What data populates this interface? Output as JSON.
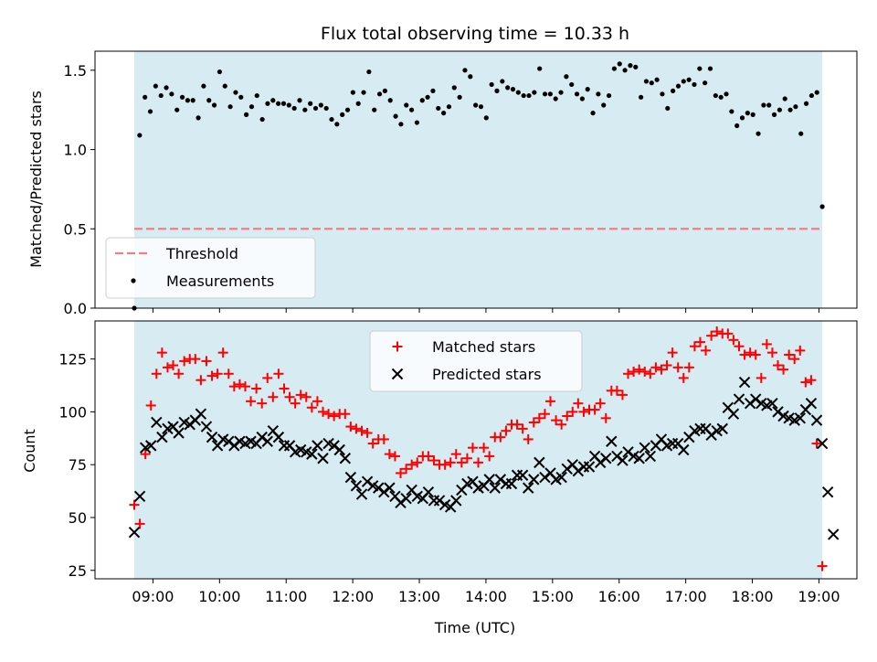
{
  "chart_data": {
    "title": "Flux total observing time = 10.33 h",
    "xlabel": "Time (UTC)",
    "x_ticks": [
      "09:00",
      "10:00",
      "11:00",
      "12:00",
      "13:00",
      "14:00",
      "15:00",
      "16:00",
      "17:00",
      "18:00",
      "19:00"
    ],
    "x_tick_hours": [
      9,
      10,
      11,
      12,
      13,
      14,
      15,
      16,
      17,
      18,
      19
    ],
    "xlim_hours": [
      8.13,
      19.57
    ],
    "shaded_span_hours": [
      8.72,
      19.05
    ],
    "shade_color": "#add8e6",
    "top": {
      "type": "scatter",
      "ylabel": "Matched/Predicted stars",
      "ylim": [
        0,
        1.62
      ],
      "y_ticks": [
        "0.0",
        "0.5",
        "1.0",
        "1.5"
      ],
      "y_tick_values": [
        0,
        0.5,
        1.0,
        1.5
      ],
      "threshold": {
        "label": "Threshold",
        "value": 0.5,
        "color": "#f08080"
      },
      "measurements_label": "Measurements",
      "legend_position": "lower-left",
      "ratio": [
        0.0,
        1.09,
        1.33,
        1.24,
        1.4,
        1.34,
        1.39,
        1.35,
        1.25,
        1.33,
        1.31,
        1.31,
        1.2,
        1.4,
        1.31,
        1.28,
        1.49,
        1.4,
        1.27,
        1.36,
        1.33,
        1.22,
        1.27,
        1.34,
        1.19,
        1.29,
        1.31,
        1.29,
        1.29,
        1.28,
        1.26,
        1.31,
        1.25,
        1.29,
        1.26,
        1.28,
        1.26,
        1.19,
        1.16,
        1.22,
        1.25,
        1.36,
        1.29,
        1.36,
        1.49,
        1.25,
        1.35,
        1.37,
        1.31,
        1.21,
        1.16,
        1.28,
        1.25,
        1.17,
        1.31,
        1.33,
        1.37,
        1.26,
        1.23,
        1.27,
        1.39,
        1.33,
        1.5,
        1.46,
        1.28,
        1.27,
        1.2,
        1.41,
        1.37,
        1.43,
        1.39,
        1.38,
        1.36,
        1.34,
        1.34,
        1.36,
        1.51,
        1.35,
        1.35,
        1.32,
        1.36,
        1.46,
        1.41,
        1.35,
        1.32,
        1.38,
        1.23,
        1.35,
        1.28,
        1.34,
        1.51,
        1.54,
        1.5,
        1.53,
        1.52,
        1.33,
        1.43,
        1.42,
        1.44,
        1.35,
        1.26,
        1.37,
        1.4,
        1.43,
        1.44,
        1.41,
        1.51,
        1.42,
        1.51,
        1.34,
        1.33,
        1.35,
        1.24,
        1.15,
        1.2,
        1.23,
        1.22,
        1.1,
        1.28,
        1.28,
        1.22,
        1.25,
        1.32,
        1.25,
        1.27,
        1.1,
        1.29,
        1.34,
        1.36,
        0.64
      ]
    },
    "bottom": {
      "type": "scatter",
      "ylabel": "Count",
      "ylim": [
        21,
        143
      ],
      "y_ticks": [
        "25",
        "50",
        "75",
        "100",
        "125"
      ],
      "y_tick_values": [
        25,
        50,
        75,
        100,
        125
      ],
      "legend_position": "top-center",
      "series": [
        {
          "name": "Matched stars",
          "marker": "plus",
          "color": "#ff0000",
          "values": [
            56,
            47,
            80,
            103,
            118,
            128,
            121,
            122,
            118,
            124,
            125,
            125,
            115,
            124,
            117,
            118,
            128,
            118,
            112,
            113,
            112,
            105,
            111,
            104,
            116,
            107,
            118,
            111,
            107,
            104,
            108,
            107,
            102,
            105,
            100,
            99,
            98,
            99,
            99,
            93,
            92,
            91,
            90,
            85,
            87,
            87,
            80,
            79,
            71,
            73,
            75,
            76,
            79,
            79,
            77,
            75,
            75,
            76,
            80,
            76,
            78,
            83,
            76,
            83,
            79,
            88,
            88,
            91,
            94,
            94,
            92,
            87,
            95,
            97,
            99,
            105,
            96,
            94,
            98,
            100,
            104,
            100,
            101,
            101,
            104,
            97,
            110,
            110,
            108,
            118,
            119,
            120,
            119,
            118,
            121,
            120,
            122,
            128,
            121,
            116,
            121,
            131,
            133,
            129,
            136,
            138,
            137,
            137,
            134,
            131,
            127,
            128,
            127,
            116,
            132,
            128,
            122,
            120,
            127,
            125,
            129,
            114,
            115,
            85,
            27
          ]
        },
        {
          "name": "Predicted stars",
          "marker": "x",
          "color": "#000000",
          "values": [
            43,
            60,
            83,
            84,
            95,
            88,
            92,
            93,
            90,
            95,
            94,
            96,
            99,
            93,
            88,
            84,
            87,
            86,
            84,
            86,
            85,
            86,
            85,
            88,
            86,
            91,
            88,
            84,
            84,
            81,
            82,
            81,
            80,
            84,
            78,
            85,
            84,
            82,
            78,
            69,
            65,
            61,
            67,
            65,
            64,
            62,
            64,
            60,
            57,
            59,
            63,
            60,
            59,
            62,
            58,
            58,
            56,
            55,
            58,
            63,
            66,
            67,
            64,
            65,
            68,
            64,
            68,
            66,
            66,
            70,
            70,
            64,
            68,
            76,
            69,
            71,
            68,
            69,
            73,
            75,
            72,
            74,
            74,
            79,
            76,
            78,
            86,
            79,
            77,
            81,
            79,
            78,
            83,
            79,
            84,
            87,
            84,
            85,
            85,
            82,
            88,
            91,
            92,
            92,
            89,
            91,
            92,
            102,
            99,
            106,
            114,
            104,
            106,
            104,
            103,
            104,
            100,
            98,
            97,
            96,
            97,
            101,
            104,
            96,
            85,
            62,
            42
          ]
        }
      ]
    }
  }
}
